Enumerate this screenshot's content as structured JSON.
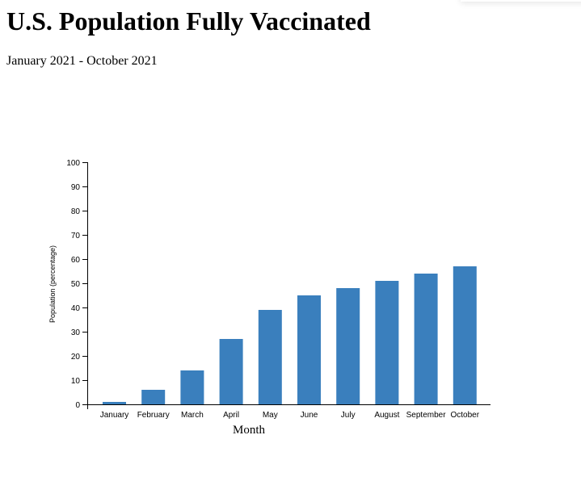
{
  "page": {
    "title": "U.S. Population Fully Vaccinated",
    "subtitle": "January 2021 - October 2021"
  },
  "colors": {
    "bar": "#3a7fbd",
    "axis": "#000000",
    "background": "#ffffff"
  },
  "chart_data": {
    "type": "bar",
    "title": "",
    "xlabel": "Month",
    "ylabel": "Population (percentage)",
    "ylim": [
      0,
      100
    ],
    "yticks": [
      0,
      10,
      20,
      30,
      40,
      50,
      60,
      70,
      80,
      90,
      100
    ],
    "categories": [
      "January",
      "February",
      "March",
      "April",
      "May",
      "June",
      "July",
      "August",
      "September",
      "October"
    ],
    "values": [
      1,
      6,
      14,
      27,
      39,
      45,
      48,
      51,
      54,
      57
    ],
    "grid": false,
    "legend": "none"
  }
}
